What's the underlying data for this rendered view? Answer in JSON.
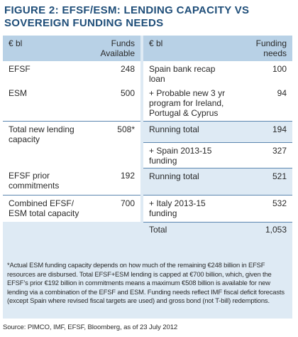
{
  "title": "FIGURE 2: EFSF/ESM: LENDING CAPACITY VS SOVEREIGN FUNDING NEEDS",
  "left_table": {
    "header_label": "€ bl",
    "header_value": "Funds Available",
    "rows": [
      {
        "label": "EFSF",
        "value": "248"
      },
      {
        "label": "ESM",
        "value": "500"
      },
      {
        "label": "Total new lending capacity",
        "value": "508*"
      },
      {
        "label": "EFSF prior commitments",
        "value": "192"
      },
      {
        "label": "Combined EFSF/ ESM total capacity",
        "value": "700"
      }
    ]
  },
  "right_table": {
    "header_label": "€ bl",
    "header_value": "Funding needs",
    "rows": [
      {
        "label": "Spain bank recap loan",
        "value": "100"
      },
      {
        "label": "+ Probable new 3 yr program for Ireland, Portugal & Cyprus",
        "value": "94"
      },
      {
        "label": "Running total",
        "value": "194"
      },
      {
        "label": "+ Spain 2013-15 funding",
        "value": "327"
      },
      {
        "label": "Running total",
        "value": "521"
      },
      {
        "label": "+ Italy 2013-15 funding",
        "value": "532"
      },
      {
        "label": "Total",
        "value": "1,053"
      }
    ]
  },
  "footnote": "*Actual ESM funding capacity depends on how much of the remaining €248 billion in EFSF resources are disbursed. Total EFSF+ESM lending is capped at €700 billion, which, given the EFSF’s prior €192 billion in commitments means a maximum €508 billion is available for new lending via a combination of the EFSF and ESM. Funding needs reflect IMF fiscal deficit forecasts (except Spain where revised fiscal targets are used) and gross bond (not T-bill) redemptions.",
  "source": "Source: PIMCO, IMF, EFSF, Bloomberg, as of 23 July 2012",
  "colors": {
    "title": "#1f4e79",
    "header_fill": "#b8d1e6",
    "panel_fill": "#deeaf4",
    "rule": "#5b86b0"
  }
}
